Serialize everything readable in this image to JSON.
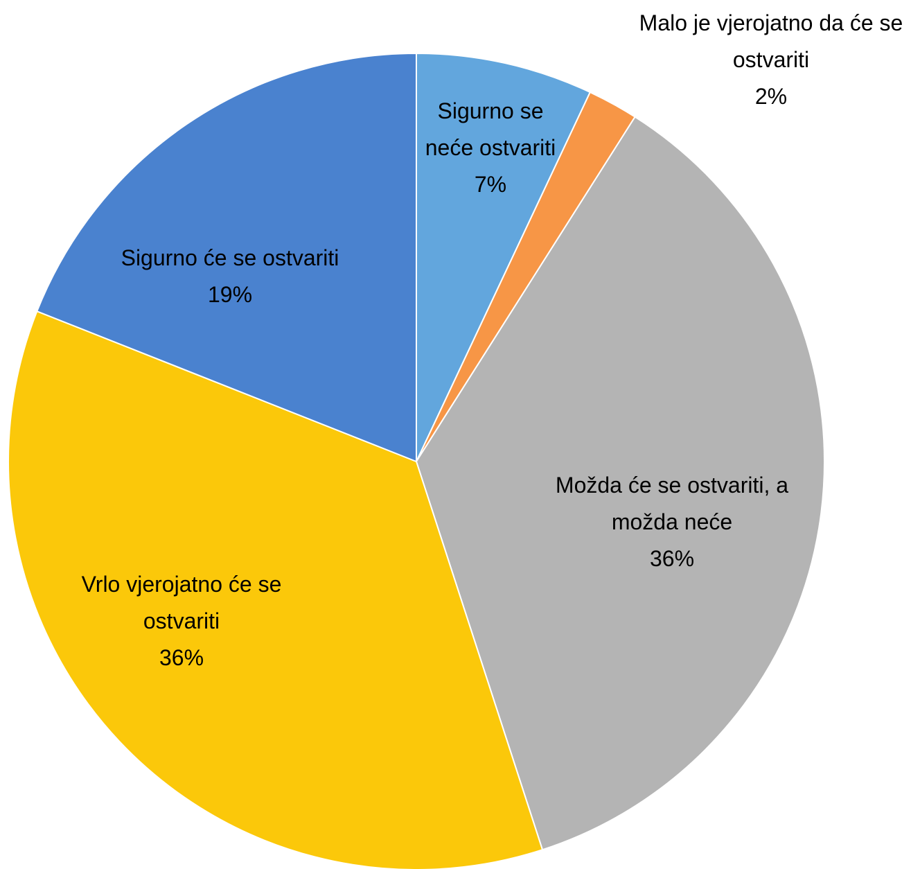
{
  "chart_data": {
    "type": "pie",
    "categories": [
      "Sigurno se neće ostvariti",
      "Malo je vjerojatno da će se ostvariti",
      "Možda će se ostvariti, a možda neće",
      "Vrlo vjerojatno će se ostvariti",
      "Sigurno će se ostvariti"
    ],
    "values": [
      7,
      2,
      36,
      36,
      19
    ],
    "value_labels": [
      "7%",
      "2%",
      "36%",
      "36%",
      "19%"
    ],
    "colors": [
      "#62a6dd",
      "#f79646",
      "#b4b4b4",
      "#fbc80a",
      "#4a82cf"
    ]
  }
}
